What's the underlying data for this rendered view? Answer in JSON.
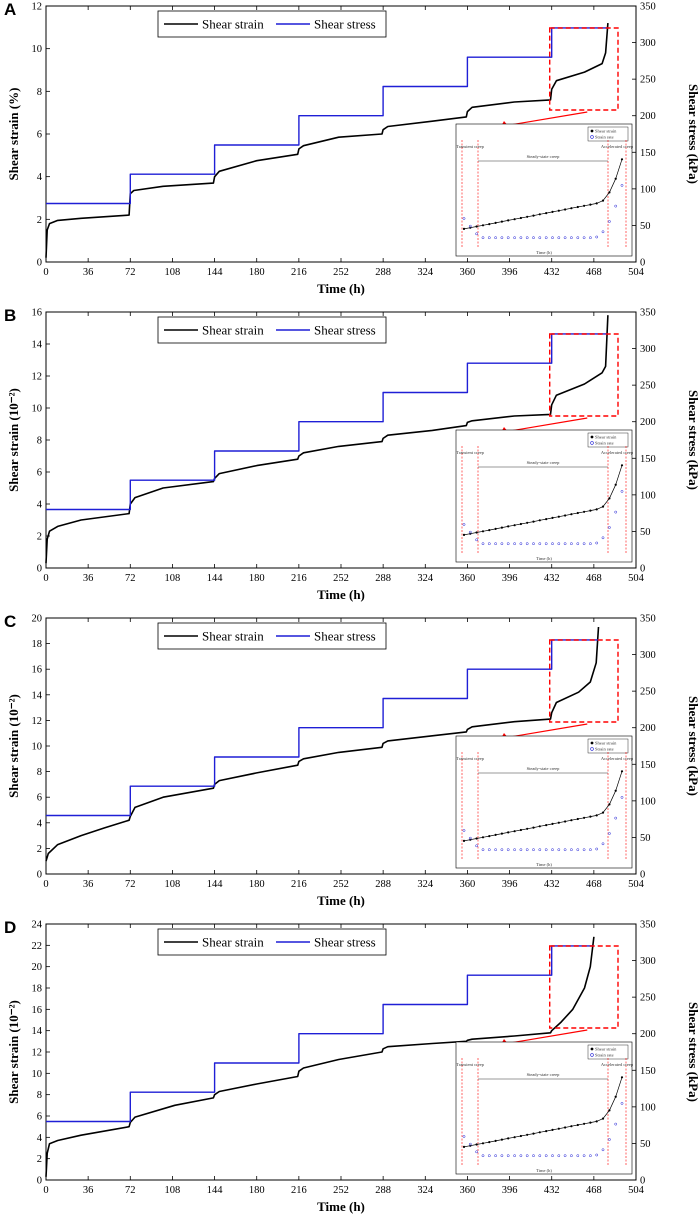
{
  "colors": {
    "strain": "#000000",
    "stress": "#1f1fd6",
    "highlight": "#ff0000"
  },
  "chart_data": [
    {
      "type": "line",
      "panel": "A",
      "title": "",
      "xlabel": "Time (h)",
      "ylabel": "Shear strain (%)",
      "y2label": "Shear stress (kPa)",
      "xlim": [
        0,
        504
      ],
      "ylim": [
        0,
        12
      ],
      "y2lim": [
        0,
        350
      ],
      "xticks": [
        0,
        36,
        72,
        108,
        144,
        180,
        216,
        252,
        288,
        324,
        360,
        396,
        432,
        468,
        504
      ],
      "yticks": [
        0,
        2,
        4,
        6,
        8,
        10,
        12
      ],
      "y2ticks": [
        0,
        50,
        100,
        150,
        200,
        250,
        300,
        350
      ],
      "legend": [
        "Shear strain",
        "Shear stress"
      ],
      "series": [
        {
          "name": "Shear strain",
          "axis": "left",
          "x": [
            0,
            1,
            3,
            10,
            30,
            71,
            72,
            75,
            100,
            143,
            144,
            148,
            180,
            215,
            216,
            220,
            250,
            287,
            288,
            292,
            330,
            359,
            360,
            364,
            400,
            431,
            432,
            436,
            460,
            475,
            478,
            480
          ],
          "y": [
            0.2,
            1.5,
            1.8,
            1.95,
            2.05,
            2.2,
            3.2,
            3.35,
            3.55,
            3.7,
            4.0,
            4.25,
            4.75,
            5.05,
            5.3,
            5.45,
            5.85,
            6.0,
            6.2,
            6.35,
            6.6,
            6.8,
            7.05,
            7.25,
            7.5,
            7.6,
            8.1,
            8.5,
            8.9,
            9.3,
            9.8,
            11.2
          ]
        },
        {
          "name": "Shear stress",
          "axis": "right",
          "x": [
            0,
            72,
            72,
            144,
            144,
            216,
            216,
            288,
            288,
            360,
            360,
            432,
            432,
            480
          ],
          "y": [
            80,
            80,
            120,
            120,
            160,
            160,
            200,
            200,
            240,
            240,
            280,
            280,
            320,
            320
          ]
        }
      ],
      "inset": {
        "legend": [
          "Shear strain",
          "Strain rate"
        ],
        "stages": [
          "Transient creep",
          "Steady-state creep",
          "Accelerated creep"
        ],
        "xlabel": "Time (h)"
      }
    },
    {
      "type": "line",
      "panel": "B",
      "title": "",
      "xlabel": "Time (h)",
      "ylabel": "Shear strain (10⁻²)",
      "y2label": "Shear stress (kPa)",
      "xlim": [
        0,
        504
      ],
      "ylim": [
        0,
        16
      ],
      "y2lim": [
        0,
        350
      ],
      "xticks": [
        0,
        36,
        72,
        108,
        144,
        180,
        216,
        252,
        288,
        324,
        360,
        396,
        432,
        468,
        504
      ],
      "yticks": [
        0,
        2,
        4,
        6,
        8,
        10,
        12,
        14,
        16
      ],
      "y2ticks": [
        0,
        50,
        100,
        150,
        200,
        250,
        300,
        350
      ],
      "legend": [
        "Shear strain",
        "Shear stress"
      ],
      "series": [
        {
          "name": "Shear strain",
          "axis": "left",
          "x": [
            0,
            1,
            3,
            10,
            30,
            71,
            72,
            76,
            100,
            143,
            144,
            148,
            180,
            215,
            216,
            220,
            250,
            287,
            288,
            292,
            330,
            359,
            360,
            364,
            400,
            431,
            432,
            436,
            460,
            475,
            478,
            480
          ],
          "y": [
            0.3,
            1.8,
            2.3,
            2.6,
            3.0,
            3.4,
            4.0,
            4.4,
            5.0,
            5.4,
            5.6,
            5.9,
            6.4,
            6.8,
            7.0,
            7.2,
            7.6,
            7.9,
            8.1,
            8.3,
            8.6,
            8.9,
            9.1,
            9.2,
            9.5,
            9.6,
            10.2,
            10.8,
            11.5,
            12.2,
            12.6,
            15.8
          ]
        },
        {
          "name": "Shear stress",
          "axis": "right",
          "x": [
            0,
            72,
            72,
            144,
            144,
            216,
            216,
            288,
            288,
            360,
            360,
            432,
            432,
            480
          ],
          "y": [
            80,
            80,
            120,
            120,
            160,
            160,
            200,
            200,
            240,
            240,
            280,
            280,
            320,
            320
          ]
        }
      ],
      "inset": {
        "legend": [
          "Shear strain",
          "Strain rate"
        ],
        "stages": [
          "Transient creep",
          "Steady-state creep",
          "Accelerated creep"
        ],
        "xlabel": "Time (h)"
      }
    },
    {
      "type": "line",
      "panel": "C",
      "title": "",
      "xlabel": "Time (h)",
      "ylabel": "Shear strain (10⁻²)",
      "y2label": "Shear stress (kPa)",
      "xlim": [
        0,
        504
      ],
      "ylim": [
        0,
        20
      ],
      "y2lim": [
        0,
        350
      ],
      "xticks": [
        0,
        36,
        72,
        108,
        144,
        180,
        216,
        252,
        288,
        324,
        360,
        396,
        432,
        468,
        504
      ],
      "yticks": [
        0,
        2,
        4,
        6,
        8,
        10,
        12,
        14,
        16,
        18,
        20
      ],
      "y2ticks": [
        0,
        50,
        100,
        150,
        200,
        250,
        300,
        350
      ],
      "legend": [
        "Shear strain",
        "Shear stress"
      ],
      "series": [
        {
          "name": "Shear strain",
          "axis": "left",
          "x": [
            0,
            2,
            10,
            30,
            50,
            71,
            72,
            76,
            100,
            143,
            144,
            148,
            180,
            215,
            216,
            220,
            250,
            287,
            288,
            292,
            330,
            359,
            360,
            364,
            400,
            431,
            432,
            436,
            455,
            465,
            470,
            472
          ],
          "y": [
            1.0,
            1.6,
            2.3,
            3.0,
            3.6,
            4.2,
            4.5,
            5.2,
            6.0,
            6.7,
            7.0,
            7.3,
            7.9,
            8.5,
            8.8,
            9.0,
            9.5,
            9.9,
            10.2,
            10.4,
            10.8,
            11.1,
            11.3,
            11.5,
            11.9,
            12.1,
            12.6,
            13.4,
            14.2,
            15.0,
            16.5,
            19.3
          ]
        },
        {
          "name": "Shear stress",
          "axis": "right",
          "x": [
            0,
            72,
            72,
            144,
            144,
            216,
            216,
            288,
            288,
            360,
            360,
            432,
            432,
            472
          ],
          "y": [
            80,
            80,
            120,
            120,
            160,
            160,
            200,
            200,
            240,
            240,
            280,
            280,
            320,
            320
          ]
        }
      ],
      "inset": {
        "legend": [
          "Shear strain",
          "Strain rate"
        ],
        "stages": [
          "Transient creep",
          "Steady-state creep",
          "Accelerated creep"
        ],
        "xlabel": "Time (h)"
      }
    },
    {
      "type": "line",
      "panel": "D",
      "title": "",
      "xlabel": "Time (h)",
      "ylabel": "Shear strain (10⁻²)",
      "y2label": "Shear stress (kPa)",
      "xlim": [
        0,
        504
      ],
      "ylim": [
        0,
        24
      ],
      "y2lim": [
        0,
        350
      ],
      "xticks": [
        0,
        36,
        72,
        108,
        144,
        180,
        216,
        252,
        288,
        324,
        360,
        396,
        432,
        468,
        504
      ],
      "yticks": [
        0,
        2,
        4,
        6,
        8,
        10,
        12,
        14,
        16,
        18,
        20,
        22,
        24
      ],
      "y2ticks": [
        0,
        50,
        100,
        150,
        200,
        250,
        300,
        350
      ],
      "legend": [
        "Shear strain",
        "Shear stress"
      ],
      "series": [
        {
          "name": "Shear strain",
          "axis": "left",
          "x": [
            0,
            1,
            3,
            10,
            30,
            71,
            72,
            76,
            110,
            143,
            144,
            148,
            180,
            215,
            216,
            220,
            250,
            287,
            288,
            292,
            330,
            359,
            360,
            364,
            400,
            431,
            432,
            440,
            450,
            460,
            465,
            468
          ],
          "y": [
            0.3,
            2.5,
            3.4,
            3.7,
            4.2,
            5.0,
            5.4,
            5.9,
            7.0,
            7.7,
            8.0,
            8.3,
            9.0,
            9.7,
            10.2,
            10.5,
            11.3,
            12.0,
            12.3,
            12.5,
            12.8,
            13.0,
            13.1,
            13.2,
            13.5,
            13.8,
            14.0,
            14.8,
            16.0,
            18.0,
            20.0,
            22.8
          ]
        },
        {
          "name": "Shear stress",
          "axis": "right",
          "x": [
            0,
            72,
            72,
            144,
            144,
            216,
            216,
            288,
            288,
            360,
            360,
            432,
            432,
            468
          ],
          "y": [
            80,
            80,
            120,
            120,
            160,
            160,
            200,
            200,
            240,
            240,
            280,
            280,
            320,
            320
          ]
        }
      ],
      "inset": {
        "legend": [
          "Shear strain",
          "Strain rate"
        ],
        "stages": [
          "Transient creep",
          "Steady-state creep",
          "Accelerated creep"
        ],
        "xlabel": "Time (h)"
      }
    }
  ]
}
